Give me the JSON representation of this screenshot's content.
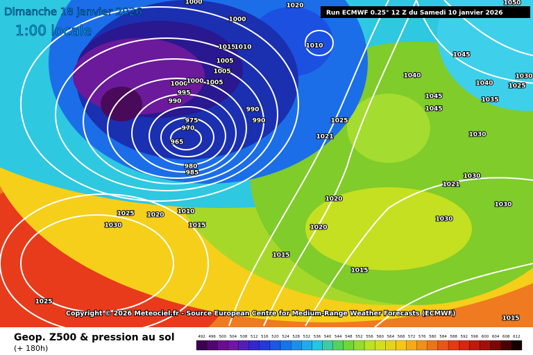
{
  "header": {
    "title": "Dimanche 18 janvier 2026",
    "time": "1:00 locale",
    "run": "Run ECMWF 0.25° 12 Z du Samedi 10 janvier 2026"
  },
  "map": {
    "isobar_labels": [
      "1000",
      "1020",
      "1000",
      "1010",
      "1015",
      "1010",
      "1005",
      "1005",
      "1000",
      "1000",
      "1005",
      "995",
      "990",
      "990",
      "990",
      "975",
      "970",
      "965",
      "980",
      "985",
      "1025",
      "1021",
      "1045",
      "1040",
      "1045",
      "1045",
      "1040",
      "1035",
      "1030",
      "1030",
      "1030",
      "1030",
      "1020",
      "1020",
      "1025",
      "1020",
      "1010",
      "1015",
      "1030",
      "1015",
      "1015",
      "1025",
      "1015",
      "1050",
      "1030",
      "1025",
      "1021"
    ]
  },
  "copyright": "Copyright © 2026 Meteociel.fr - Source European Centre for Medium-Range Weather Forecasts (ECMWF)",
  "footer": {
    "title": "Geop. Z500 & pression au sol",
    "lead": "(+ 180h)",
    "scale": [
      492,
      496,
      500,
      504,
      508,
      512,
      516,
      520,
      524,
      528,
      532,
      536,
      540,
      544,
      548,
      552,
      556,
      560,
      564,
      568,
      572,
      576,
      580,
      584,
      588,
      592,
      596,
      600,
      604,
      608,
      612
    ]
  }
}
